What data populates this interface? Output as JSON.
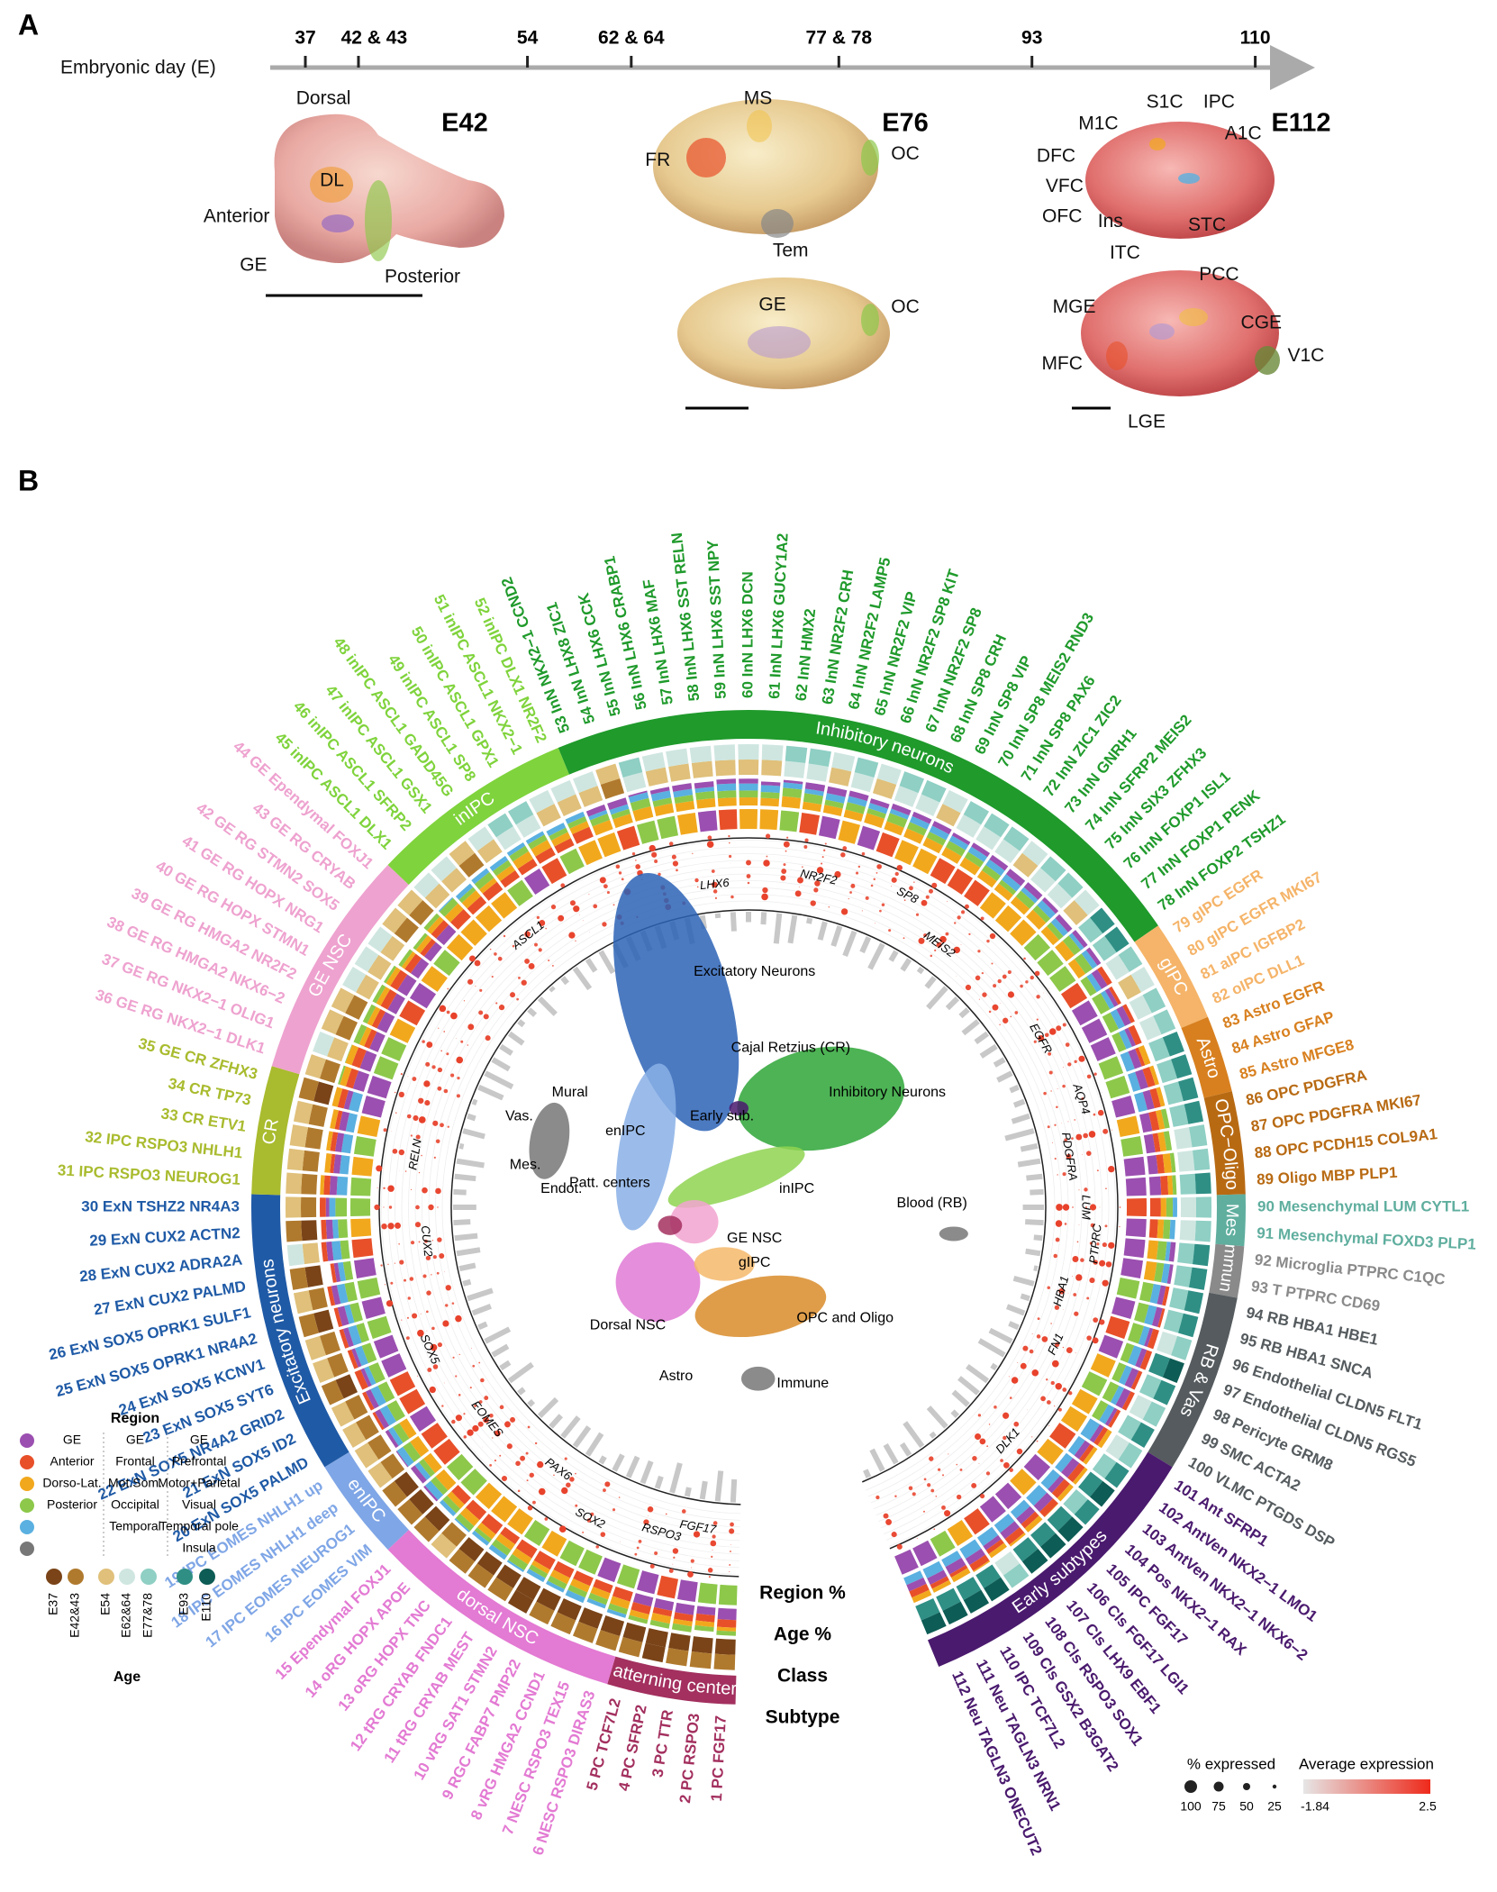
{
  "panel_a": {
    "letter": "A",
    "axis_label": "Embryonic day (E)",
    "ticks": [
      "37",
      "42 & 43",
      "54",
      "62 & 64",
      "77 & 78",
      "93",
      "110"
    ],
    "brains": [
      {
        "title": "E42",
        "labels": [
          "Dorsal",
          "DL",
          "Anterior",
          "GE",
          "Posterior"
        ]
      },
      {
        "title": "E76",
        "labels": [
          "MS",
          "FR",
          "OC",
          "Tem",
          "GE",
          "OC"
        ]
      },
      {
        "title": "E112",
        "labels": [
          "M1C",
          "S1C",
          "IPC",
          "A1C",
          "DFC",
          "VFC",
          "OFC",
          "Ins",
          "STC",
          "ITC",
          "MGE",
          "PCC",
          "CGE",
          "MFC",
          "V1C",
          "LGE"
        ]
      }
    ]
  },
  "panel_b": {
    "letter": "B",
    "classes": [
      {
        "name": "Patterning centers",
        "color": "#a3305f",
        "subtypes": [
          "1 PC FGF17",
          "2 PC RSPO3",
          "3 PC TTR",
          "4 PC SFRP2",
          "5 PC TCF7L2"
        ]
      },
      {
        "name": "dorsal NSC",
        "color": "#e37ad3",
        "subtypes": [
          "6 NESC RSPO3 DIRAS3",
          "7 NESC RSPO3 TEX15",
          "8 vRG HMGA2 CCND1",
          "9 RGC FABP7 PMP22",
          "10 vRG SAT1 STMN2",
          "11 tRG CRYAB MEST",
          "12 tRG CRYAB FNDC1",
          "13 oRG HOPX TNC",
          "14 oRG HOPX APOE",
          "15 Ependymal FOXJ1"
        ]
      },
      {
        "name": "enIPC",
        "color": "#7fa6e6",
        "subtypes": [
          "16 IPC EOMES VIM",
          "17 IPC EOMES NEUROG1",
          "18 IPC EOMES NHLH1 deep",
          "19 IPC EOMES NHLH1 up"
        ]
      },
      {
        "name": "Excitatory neurons",
        "color": "#1f5aa6",
        "subtypes": [
          "20 ExN SOX5 PALMD",
          "21 ExN SOX5 ID2",
          "22 ExN SOX5 NR4A2 GRID2",
          "23 ExN SOX5 SYT6",
          "24 ExN SOX5 KCNV1",
          "25 ExN SOX5 OPRK1 NR4A2",
          "26 ExN SOX5 OPRK1 SULF1",
          "27 ExN CUX2 PALMD",
          "28 ExN CUX2 ADRA2A",
          "29 ExN CUX2 ACTN2",
          "30 ExN TSHZ2 NR4A3"
        ]
      },
      {
        "name": "CR",
        "color": "#a9bb2e",
        "subtypes": [
          "31 IPC RSPO3 NEUROG1",
          "32 IPC RSPO3 NHLH1",
          "33 CR ETV1",
          "34 CR TP73",
          "35 GE CR ZFHX3"
        ]
      },
      {
        "name": "GE NSC",
        "color": "#eea2cf",
        "subtypes": [
          "36 GE RG NKX2−1 DLK1",
          "37 GE RG NKX2−1 OLIG1",
          "38 GE RG HMGA2 NKX6−2",
          "39 GE RG HMGA2 NR2F2",
          "40 GE RG HOPX STMN1",
          "41 GE RG HOPX NRG1",
          "42 GE RG STMN2 SOX5",
          "43 GE RG CRYAB",
          "44 GE Ependymal FOXJ1"
        ]
      },
      {
        "name": "inIPC",
        "color": "#7fd33c",
        "subtypes": [
          "45 inIPC ASCL1 DLX1",
          "46 inIPC ASCL1 SFRP2",
          "47 inIPC ASCL1 GSX1",
          "48 inIPC ASCL1 GADD45G",
          "49 inIPC ASCL1 SP8",
          "50 inIPC ASCL1 GPX1",
          "51 inIPC ASCL1 NKX2−1",
          "52 inIPC DLX1 NR2F2"
        ]
      },
      {
        "name": "Inhibitory neurons",
        "color": "#1f9a2b",
        "subtypes": [
          "53 InN NKX2−1 CCND2",
          "54 InN LHX8 ZIC1",
          "55 InN LHX6 CCK",
          "56 InN LHX6 CRABP1",
          "57 InN LHX6 MAF",
          "58 InN LHX6 SST RELN",
          "59 InN LHX6 SST NPY",
          "60 InN LHX6 DCN",
          "61 InN LHX6 GUCY1A2",
          "62 InN HMX2",
          "63 InN NR2F2 CRH",
          "64 InN NR2F2 LAMP5",
          "65 InN NR2F2 VIP",
          "66 InN NR2F2 SP8 KIT",
          "67 InN NR2F2 SP8",
          "68 InN SP8 CRH",
          "69 InN SP8 VIP",
          "70 InN SP8 MEIS2 RND3",
          "71 InN SP8 PAX6",
          "72 InN ZIC1 ZIC2",
          "73 InN GNRH1",
          "74 InN SFRP2 MEIS2",
          "75 InN SIX3 ZFHX3",
          "76 InN FOXP1 ISL1",
          "77 InN FOXP1 PENK",
          "78 InN FOXP2 TSHZ1"
        ]
      },
      {
        "name": "gIPC",
        "color": "#f5b469",
        "subtypes": [
          "79 gIPC EGFR",
          "80 gIPC EGFR MKI67",
          "81 aIPC IGFBP2",
          "82 oIPC DLL1"
        ]
      },
      {
        "name": "Astro",
        "color": "#d8801f",
        "subtypes": [
          "83 Astro EGFR",
          "84 Astro GFAP",
          "85 Astro MFGE8"
        ]
      },
      {
        "name": "OPC−Oligo",
        "color": "#b86a13",
        "subtypes": [
          "86 OPC PDGFRA",
          "87 OPC PDGFRA MKI67",
          "88 OPC PCDH15 COL9A1",
          "89 Oligo MBP PLP1"
        ]
      },
      {
        "name": "Mes",
        "color": "#5fae9e",
        "subtypes": [
          "90 Mesenchymal LUM CYTL1",
          "91 Mesenchymal FOXD3 PLP1"
        ]
      },
      {
        "name": "Immune",
        "color": "#8a8a8a",
        "subtypes": [
          "92 Microglia PTPRC C1QC",
          "93 T PTPRC CD69"
        ]
      },
      {
        "name": "RB & Vas",
        "color": "#555b5e",
        "subtypes": [
          "94 RB HBA1 HBE1",
          "95 RB HBA1 SNCA",
          "96 Endothelial CLDN5 FLT1",
          "97 Endothelial CLDN5 RGS5",
          "98 Pericyte GRM8",
          "99 SMC ACTA2",
          "100 VLMC PTGDS DSP"
        ]
      },
      {
        "name": "Early subtypes",
        "color": "#4a1a6e",
        "subtypes": [
          "101 Ant SFRP1",
          "102 AntVen NKX2−1 LMO1",
          "103 AntVen NKX2−1 NKX6−2",
          "104 Pos NKX2−1 RAX",
          "105 IPC FGF17",
          "106 Cls FGF17 LGI1",
          "107 Cls LHX9 EBF1",
          "108 Cls RSPO3 SOX1",
          "109 Cls GSX2 B3GAT2",
          "110 IPC TCF7L2",
          "111 Neu TAGLN3 NRN1",
          "112 Neu TAGLN3 ONECUT2"
        ]
      }
    ],
    "genes": [
      "LHX6",
      "NR2F2",
      "SP8",
      "MEIS2",
      "EGFR",
      "AQP4",
      "PDGFRA",
      "LUM",
      "PTPRC",
      "HBA1",
      "FN1",
      "DLK1",
      "FGF17",
      "RSPO3",
      "SOX2",
      "PAX6",
      "EOMES",
      "SOX5",
      "CUX2",
      "RELN",
      "ASCL1"
    ],
    "umap_labels": [
      "Excitatory Neurons",
      "Cajal Retzius (CR)",
      "Inhibitory Neurons",
      "Early sub.",
      "enIPC",
      "Patt. centers",
      "inIPC",
      "GE NSC",
      "gIPC",
      "Dorsal NSC",
      "Astro",
      "OPC and Oligo",
      "Mural",
      "Vas.",
      "Mes.",
      "Endot.",
      "Blood (RB)",
      "Immune"
    ],
    "tracks": [
      "Region %",
      "Age %",
      "Class",
      "Subtype"
    ],
    "legend": {
      "region_title": "Region",
      "region_colors": [
        "#9b4fb0",
        "#e8502a",
        "#f2a81d",
        "#8dc84a",
        "#5ab0e0",
        "#777777"
      ],
      "region_columns": [
        [
          "GE",
          "Anterior",
          "Dorso-Lat.",
          "Posterior"
        ],
        [
          "GE",
          "Frontal",
          "Mot.Som.",
          "Occipital",
          "Temporal"
        ],
        [
          "GE",
          "Prefrontal",
          "Motor+Parietal",
          "Visual",
          "Temporal pole",
          "Insula"
        ]
      ],
      "age_title": "Age",
      "ages": [
        "E37",
        "E42&43",
        "E54",
        "E62&64",
        "E77&78",
        "E93",
        "E110"
      ],
      "age_colors": [
        "#7a4418",
        "#b07a2e",
        "#e0c07a",
        "#cfe6e0",
        "#8fcfc4",
        "#2f8f85",
        "#0d5c55"
      ],
      "expressed_title": "% expressed",
      "expressed_sizes": [
        "100",
        "75",
        "50",
        "25"
      ],
      "expression_title": "Average expression",
      "expression_range": [
        "-1.84",
        "2.5"
      ]
    }
  }
}
